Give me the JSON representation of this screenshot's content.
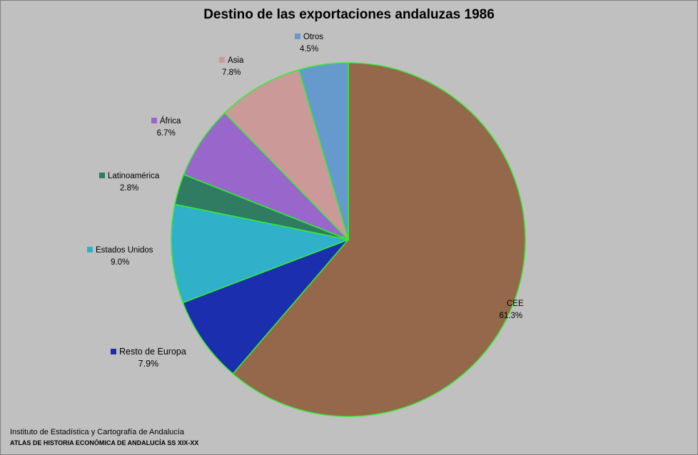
{
  "chart_data": {
    "type": "pie",
    "title": "Destino de las exportaciones andaluzas 1986",
    "slices": [
      {
        "label": "CEE",
        "value": 61.3,
        "display": "61.3%",
        "color": "#95674b"
      },
      {
        "label": "Resto de Europa",
        "value": 7.9,
        "display": "7.9%",
        "color": "#1b2fae"
      },
      {
        "label": "Estados Unidos",
        "value": 9.0,
        "display": "9.0%",
        "color": "#31b0c9"
      },
      {
        "label": "Latinoamérica",
        "value": 2.8,
        "display": "2.8%",
        "color": "#2f7c63"
      },
      {
        "label": "África",
        "value": 6.7,
        "display": "6.7%",
        "color": "#9966cc"
      },
      {
        "label": "Asia",
        "value": 7.8,
        "display": "7.8%",
        "color": "#cc9999"
      },
      {
        "label": "Otros",
        "value": 4.5,
        "display": "4.5%",
        "color": "#6699cc"
      }
    ],
    "slice_border_color": "#33ee33",
    "legend": "none"
  },
  "source": {
    "line1": "Instituto de Estadística y Cartografía de Andalucía",
    "line2": "ATLAS DE HISTORIA ECONÓMICA DE ANDALUCÍA SS XIX-XX"
  }
}
